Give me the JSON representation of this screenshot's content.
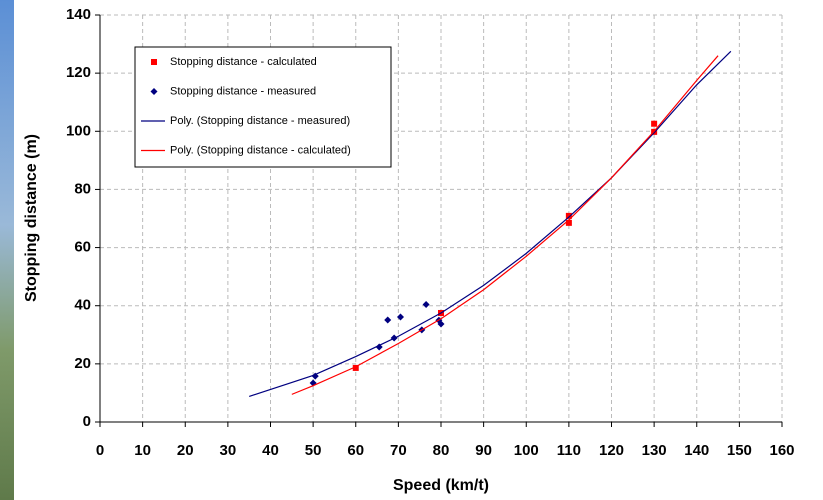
{
  "chart_data": {
    "type": "scatter",
    "xlabel": "Speed (km/t)",
    "ylabel": "Stopping distance (m)",
    "xlim": [
      0,
      160
    ],
    "ylim": [
      0,
      140
    ],
    "xticks": [
      0,
      10,
      20,
      30,
      40,
      50,
      60,
      70,
      80,
      90,
      100,
      110,
      120,
      130,
      140,
      150,
      160
    ],
    "yticks": [
      0,
      20,
      40,
      60,
      80,
      100,
      120,
      140
    ],
    "grid": true,
    "legend": "upper left",
    "series": [
      {
        "name": "Stopping distance - calculated",
        "color": "#ff0000",
        "mode": "markers",
        "marker": "square",
        "x": [
          60,
          80,
          110,
          110,
          130,
          130
        ],
        "values": [
          18.6,
          37.5,
          70.9,
          68.5,
          102.6,
          99.8
        ]
      },
      {
        "name": "Stopping distance - measured",
        "color": "#000080",
        "mode": "markers",
        "marker": "diamond",
        "x": [
          50,
          50.5,
          65.5,
          67.5,
          69,
          70.5,
          75.5,
          76.5,
          80,
          79.5
        ],
        "values": [
          13.4,
          15.8,
          25.8,
          35.1,
          28.9,
          36.1,
          31.7,
          40.4,
          33.7,
          35
        ]
      },
      {
        "name": "Poly. (Stopping distance - measured)",
        "color": "#000080",
        "mode": "line",
        "x": [
          35,
          50,
          60,
          70,
          80,
          90,
          100,
          110,
          120,
          130,
          140,
          148
        ],
        "values": [
          8.8,
          16,
          22.5,
          29.5,
          37.5,
          47,
          58,
          70.5,
          84,
          99.5,
          116,
          127.5
        ]
      },
      {
        "name": "Poly. (Stopping distance - calculated)",
        "color": "#ff0000",
        "mode": "line",
        "x": [
          45,
          50,
          60,
          70,
          80,
          90,
          100,
          110,
          120,
          130,
          140,
          145
        ],
        "values": [
          9.5,
          12.5,
          19,
          27,
          35.5,
          45.5,
          57,
          69.5,
          84,
          100,
          117.5,
          126
        ]
      }
    ]
  }
}
